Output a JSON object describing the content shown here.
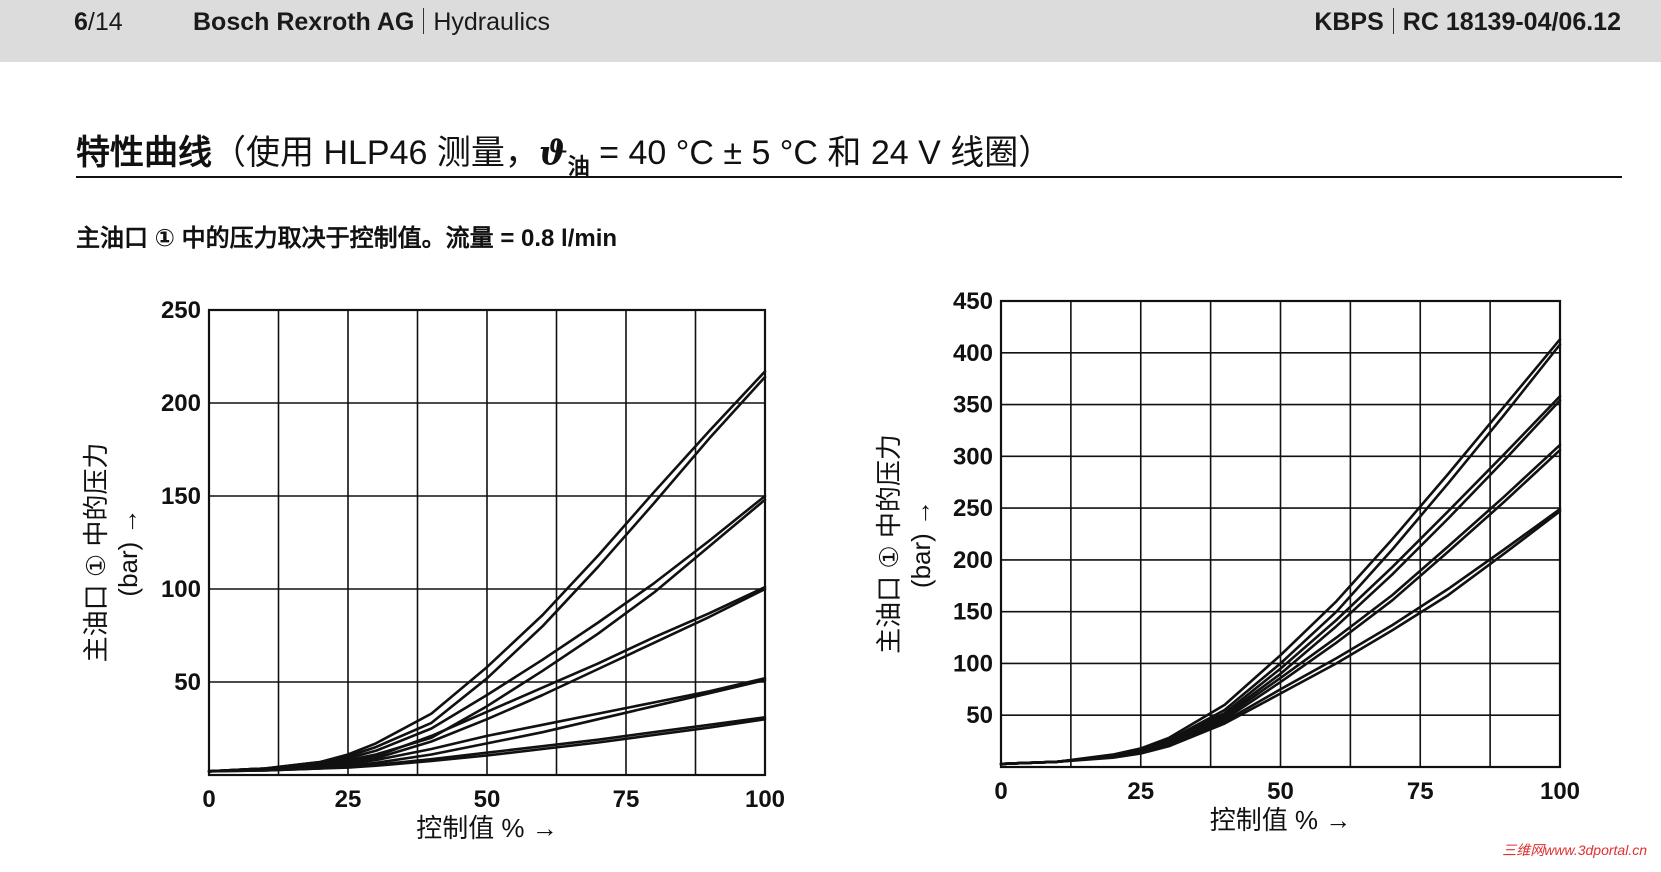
{
  "header": {
    "page_current": "6",
    "page_total": "/14",
    "company": "Bosch Rexroth AG",
    "department": "Hydraulics",
    "product": "KBPS",
    "doc_id": "RC 18139-04/06.12"
  },
  "title": {
    "main": "特性曲线",
    "detail_prefix": "（使用 HLP46 测量，",
    "theta": "ϑ",
    "theta_sub": "油",
    "detail_suffix": " = 40 °C ± 5 °C 和 24 V 线圈）"
  },
  "subtitle": "主油口 ① 中的压力取决于控制值。流量 = 0.8 l/min",
  "watermark": "三维网www.3dportal.cn",
  "chart_data": [
    {
      "type": "line",
      "title": "",
      "xlabel": "控制值 % →",
      "ylabel": "主油口 ① 中的压力",
      "ylabel_unit": "(bar) →",
      "xlim": [
        0,
        100
      ],
      "ylim": [
        0,
        250
      ],
      "xticks": [
        0,
        25,
        50,
        75,
        100
      ],
      "yticks": [
        50,
        100,
        150,
        200,
        250
      ],
      "x_tick_labels": [
        "0",
        "25",
        "50",
        "75",
        "100"
      ],
      "y_tick_labels": [
        "50",
        "100",
        "150",
        "200",
        "250"
      ],
      "grid": true,
      "x": [
        0,
        10,
        20,
        25,
        30,
        40,
        50,
        60,
        70,
        80,
        90,
        100
      ],
      "series": [
        {
          "values": [
            2,
            3.5,
            7,
            11,
            17,
            33,
            58,
            86,
            118,
            152,
            185,
            217
          ]
        },
        {
          "values": [
            2,
            3.5,
            7,
            10,
            15,
            28,
            52,
            80,
            112,
            146,
            181,
            214
          ]
        },
        {
          "values": [
            2,
            3.5,
            6,
            9,
            13,
            25,
            43,
            62,
            82,
            103,
            126,
            150
          ]
        },
        {
          "values": [
            2,
            3.5,
            6,
            8,
            11,
            20,
            37,
            56,
            76,
            98,
            123,
            148
          ]
        },
        {
          "values": [
            2,
            3,
            5,
            7,
            10,
            21,
            34,
            47,
            60,
            74,
            87,
            101
          ]
        },
        {
          "values": [
            2,
            3,
            5,
            6.5,
            9,
            18,
            30,
            43,
            57,
            71,
            85,
            100
          ]
        },
        {
          "values": [
            2,
            3,
            4.5,
            6,
            8,
            14,
            21,
            27,
            33,
            39,
            45,
            52
          ]
        },
        {
          "values": [
            2,
            3,
            4,
            5,
            6.5,
            11,
            17,
            23,
            30,
            37,
            44,
            51
          ]
        },
        {
          "values": [
            2,
            2.5,
            3.5,
            4.5,
            5.5,
            8.5,
            12,
            15.5,
            19,
            23,
            27,
            31
          ]
        },
        {
          "values": [
            2,
            2.5,
            3.5,
            4,
            5,
            7.5,
            10.5,
            14,
            17.5,
            21.5,
            25.5,
            30
          ]
        }
      ]
    },
    {
      "type": "line",
      "title": "",
      "xlabel": "控制值 % →",
      "ylabel": "主油口 ① 中的压力",
      "ylabel_unit": "(bar) →",
      "xlim": [
        0,
        100
      ],
      "ylim": [
        0,
        450
      ],
      "xticks": [
        0,
        25,
        50,
        75,
        100
      ],
      "yticks": [
        50,
        100,
        150,
        200,
        250,
        300,
        350,
        400,
        450
      ],
      "x_tick_labels": [
        "0",
        "25",
        "50",
        "75",
        "100"
      ],
      "y_tick_labels": [
        "50",
        "100",
        "150",
        "200",
        "250",
        "300",
        "350",
        "400",
        "450"
      ],
      "grid": true,
      "x": [
        0,
        10,
        20,
        25,
        30,
        40,
        50,
        60,
        70,
        80,
        90,
        100
      ],
      "series": [
        {
          "values": [
            3,
            5,
            12,
            18,
            28,
            60,
            108,
            160,
            220,
            283,
            348,
            413
          ]
        },
        {
          "values": [
            3,
            5,
            11,
            17,
            26,
            55,
            100,
            150,
            210,
            274,
            340,
            408
          ]
        },
        {
          "values": [
            3,
            5,
            11,
            16,
            25,
            52,
            95,
            142,
            193,
            247,
            302,
            358
          ]
        },
        {
          "values": [
            3,
            5,
            10,
            15,
            24,
            50,
            90,
            136,
            186,
            240,
            296,
            354
          ]
        },
        {
          "values": [
            3,
            5,
            10,
            15,
            23,
            48,
            86,
            125,
            166,
            213,
            261,
            311
          ]
        },
        {
          "values": [
            3,
            5,
            10,
            15,
            22,
            46,
            82,
            120,
            161,
            208,
            256,
            306
          ]
        },
        {
          "values": [
            3,
            5,
            10,
            14,
            21,
            44,
            75,
            105,
            137,
            172,
            210,
            249
          ]
        },
        {
          "values": [
            3,
            5,
            9,
            13,
            20,
            42,
            71,
            100,
            132,
            166,
            206,
            247
          ]
        }
      ]
    }
  ]
}
